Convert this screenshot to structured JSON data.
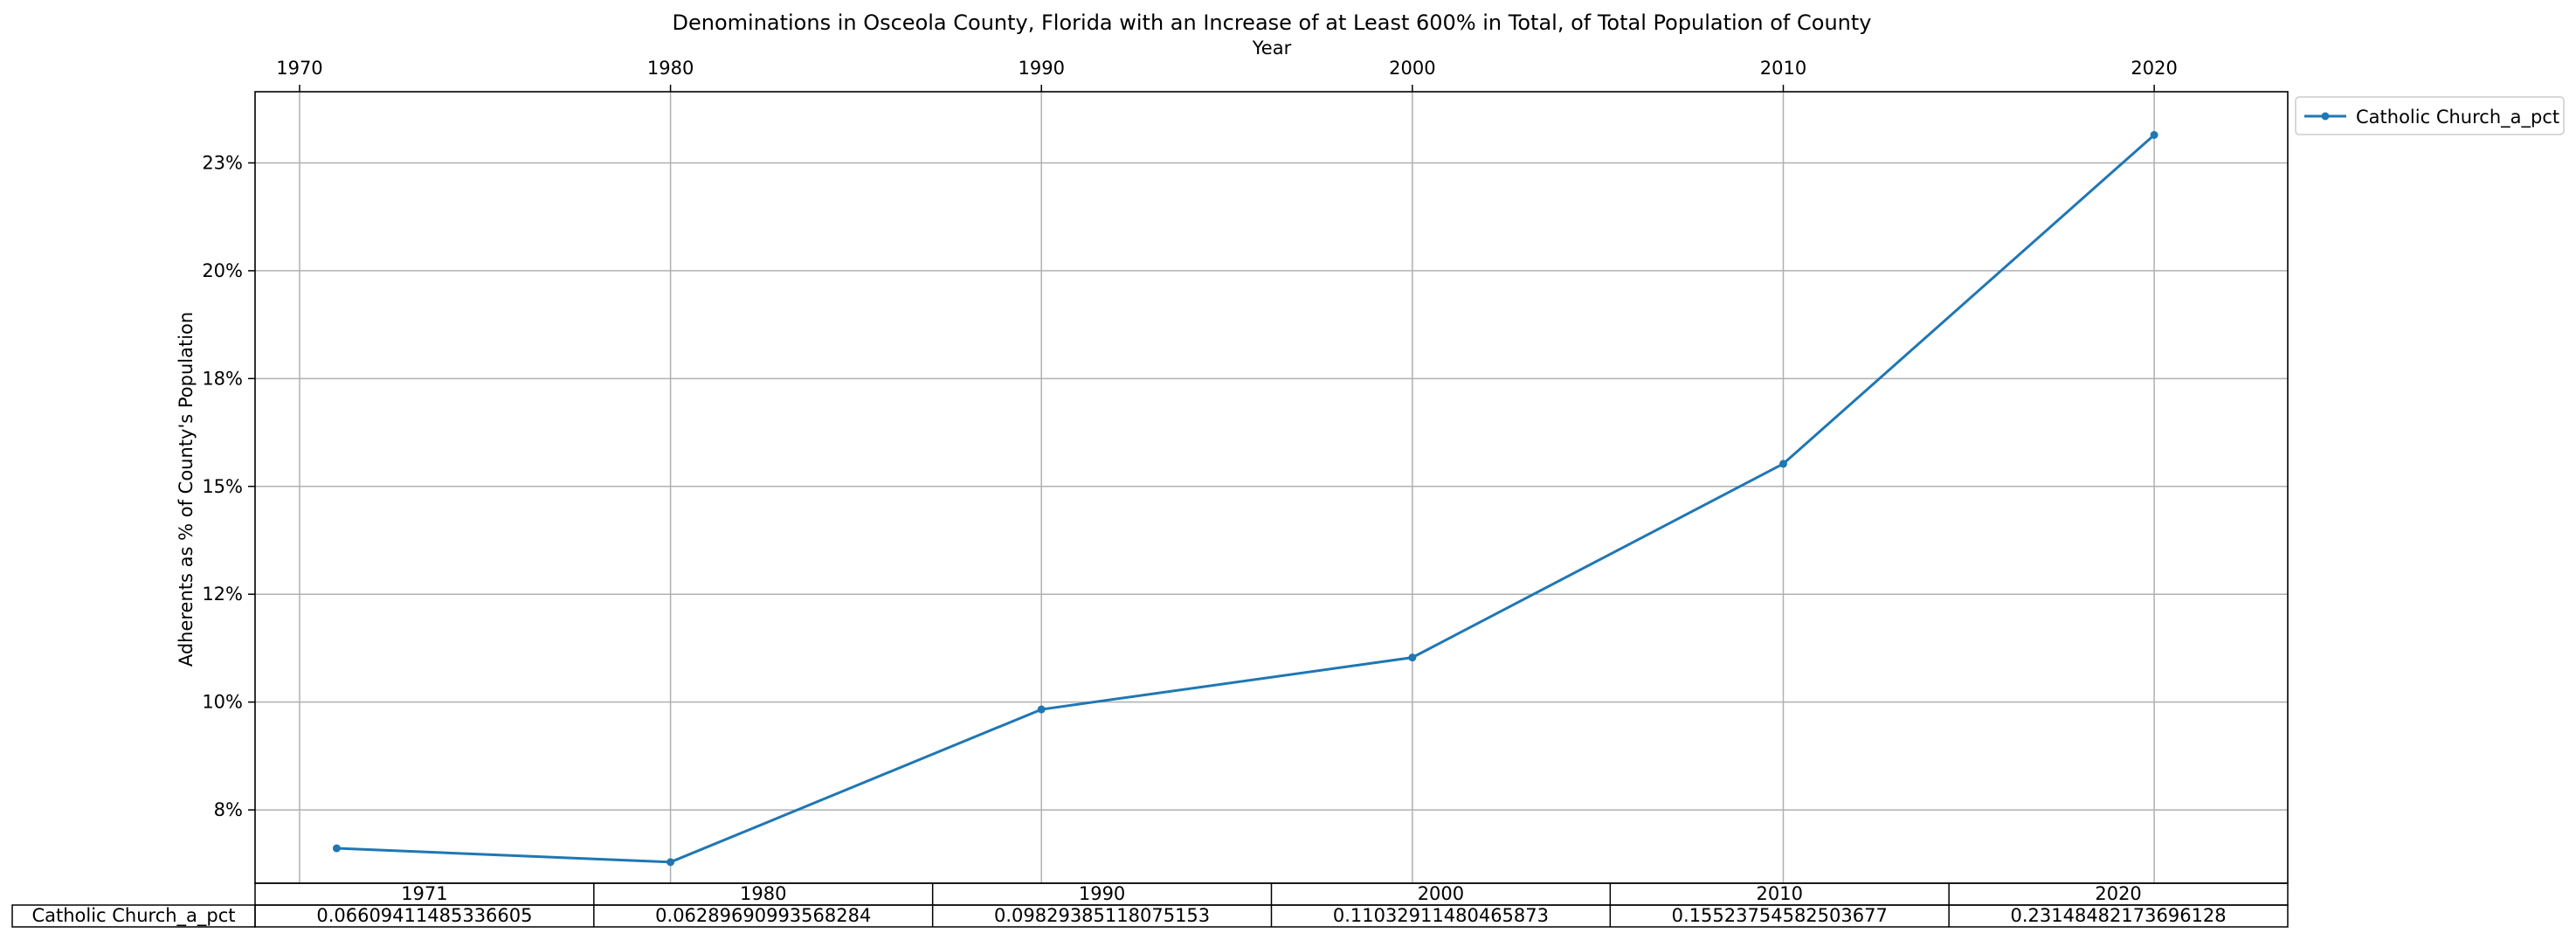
{
  "chart_data": {
    "type": "line",
    "title": "Denominations in Osceola County, Florida with an Increase of at Least 600% in Total, of Total Population of County",
    "xlabel": "Year",
    "ylabel": "Adherents as % of County's Population",
    "x": [
      1971,
      1980,
      1990,
      2000,
      2010,
      2020
    ],
    "x_ticks": [
      "1970",
      "1980",
      "1990",
      "2000",
      "2010",
      "2020"
    ],
    "x_tick_values": [
      1970,
      1980,
      1990,
      2000,
      2010,
      2020
    ],
    "xlim": [
      1968.8,
      2023.6
    ],
    "y_ticks": [
      "8%",
      "10%",
      "12%",
      "15%",
      "18%",
      "20%",
      "23%"
    ],
    "y_tick_values": [
      0.075,
      0.1,
      0.125,
      0.15,
      0.175,
      0.2,
      0.225
    ],
    "ylim": [
      0.058,
      0.2415
    ],
    "grid": true,
    "legend_position": "outside-top-right",
    "line_color": "#1f77b4",
    "series": [
      {
        "name": "Catholic Church_a_pct",
        "values": [
          0.06609411485336605,
          0.06289690993568284,
          0.09829385118075153,
          0.11032911480465873,
          0.15523754582503677,
          0.23148482173696128
        ]
      }
    ],
    "table": {
      "columns": [
        "1971",
        "1980",
        "1990",
        "2000",
        "2010",
        "2020"
      ],
      "row_label": "Catholic Church_a_pct",
      "cells": [
        "0.06609411485336605",
        "0.06289690993568284",
        "0.09829385118075153",
        "0.11032911480465873",
        "0.15523754582503677",
        "0.23148482173696128"
      ]
    }
  }
}
